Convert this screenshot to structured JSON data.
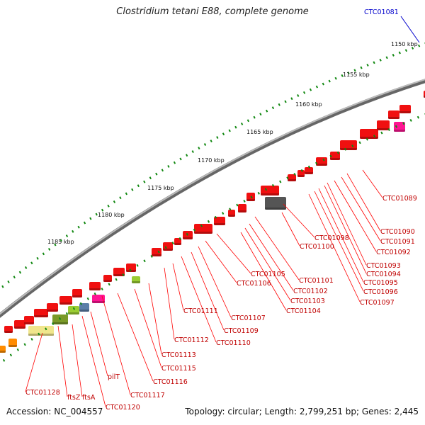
{
  "title": "Clostridium tetani E88, complete genome",
  "footer": {
    "accession": "Accession: NC_004557",
    "summary": "Topology: circular; Length: 2,799,251 bp; Genes: 2,445"
  },
  "colors": {
    "gene": "#f01010",
    "gene_label": "#c00000",
    "highlight_label": "#0000cc",
    "backbone": "#8a8a8a",
    "tick": "#118811"
  },
  "scale": {
    "ticks": [
      "1150 kbp",
      "1155 kbp",
      "1160 kbp",
      "1165 kbp",
      "1170 kbp",
      "1175 kbp",
      "1180 kbp",
      "1185 kbp"
    ]
  },
  "highlight": {
    "name": "CTC01081"
  },
  "labels": [
    "CTC01089",
    "CTC01090",
    "CTC01091",
    "CTC01092",
    "CTC01093",
    "CTC01094",
    "CTC01095",
    "CTC01096",
    "CTC01097",
    "CTC01098",
    "CTC01100",
    "CTC01101",
    "CTC01102",
    "CTC01103",
    "CTC01104",
    "CTC01105",
    "CTC01106",
    "CTC01107",
    "CTC01109",
    "CTC01110",
    "CTC01111",
    "CTC01112",
    "CTC01113",
    "CTC01115",
    "CTC01116",
    "CTC01117",
    "pilT",
    "CTC01120",
    "ftsA",
    "ftsZ",
    "CTC01128"
  ]
}
